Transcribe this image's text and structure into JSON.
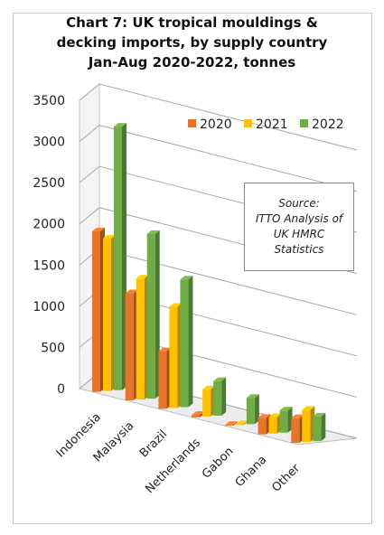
{
  "title_lines": [
    "Chart 7: UK tropical mouldings &",
    "decking imports, by supply country",
    "Jan-Aug 2020-2022, tonnes"
  ],
  "source_lines": [
    "Source:",
    "ITTO Analysis of",
    "UK HMRC",
    "Statistics"
  ],
  "chart_data": {
    "type": "bar",
    "title": "Chart 7: UK tropical mouldings & decking imports, by supply country Jan-Aug 2020-2022, tonnes",
    "categories": [
      "Indonesia",
      "Malaysia",
      "Brazil",
      "Netherlands",
      "Gabon",
      "Ghana",
      "Other"
    ],
    "series": [
      {
        "name": "2020",
        "color": "#e8742a",
        "values": [
          1950,
          1300,
          700,
          30,
          10,
          200,
          300
        ]
      },
      {
        "name": "2021",
        "color": "#ffc000",
        "values": [
          1850,
          1470,
          1230,
          330,
          10,
          200,
          390
        ]
      },
      {
        "name": "2022",
        "color": "#70ad47",
        "values": [
          3200,
          2000,
          1550,
          420,
          320,
          270,
          300
        ]
      }
    ],
    "yticks": [
      "0",
      "500",
      "1000",
      "1500",
      "2000",
      "2500",
      "3000",
      "3500"
    ],
    "ylim": [
      0,
      3500
    ],
    "grid": true,
    "legend": "top-right"
  }
}
